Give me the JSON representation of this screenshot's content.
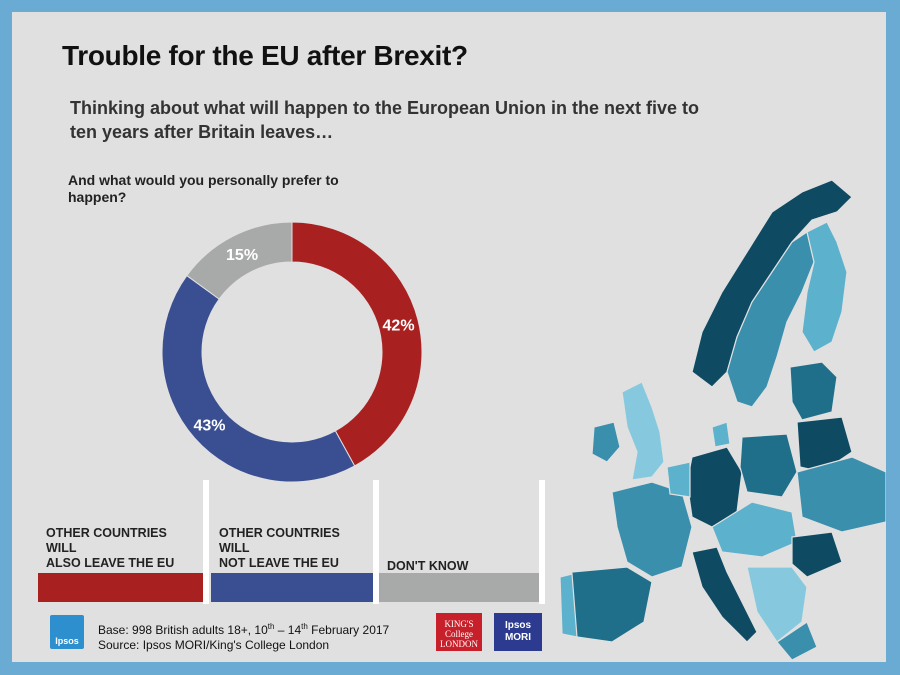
{
  "title": "Trouble for the EU after Brexit?",
  "subtitle": "Thinking about what will happen to the European Union in the next five to ten years after Britain leaves…",
  "question": "And what would you personally  prefer to happen?",
  "chart_data": {
    "type": "pie",
    "style": "donut",
    "categories": [
      "OTHER COUNTRIES WILL ALSO LEAVE THE EU",
      "OTHER COUNTRIES WILL NOT LEAVE THE EU",
      "DON'T KNOW"
    ],
    "values": [
      42,
      43,
      15
    ],
    "labels": [
      "42%",
      "43%",
      "15%"
    ],
    "colors": [
      "#a8201f",
      "#3a4f92",
      "#a8aaa9"
    ]
  },
  "legend": [
    {
      "label": "OTHER COUNTRIES\nWILL\nALSO LEAVE  THE EU",
      "color": "#a8201f"
    },
    {
      "label": "OTHER COUNTRIES\nWILL\nNOT LEAVE  THE EU",
      "color": "#3a4f92"
    },
    {
      "label": "DON'T KNOW",
      "color": "#a8aaa9"
    }
  ],
  "source": {
    "base_prefix": "Base: 998 British adults 18+, 10",
    "sup1": "th",
    "base_mid": " – 14",
    "sup2": "th",
    "base_suffix": "  February  2017",
    "line2": "Source: Ipsos MORI/King's College London"
  },
  "logos": {
    "ipsos": "Ipsos",
    "kings": "KING'S\nCollege\nLONDON",
    "mori": "Ipsos\nMORI"
  },
  "map_colors": [
    "#0f4a63",
    "#1f6f8b",
    "#3a8fad",
    "#5cb1cc",
    "#86c9df"
  ]
}
